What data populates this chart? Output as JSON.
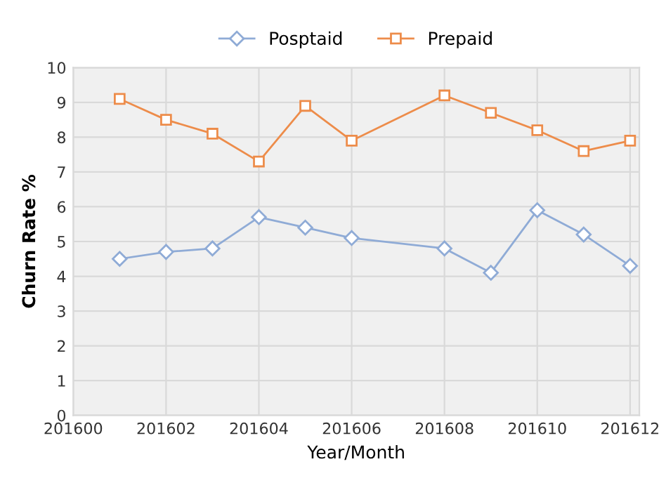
{
  "chart_data": {
    "type": "line",
    "xlabel": "Year/Month",
    "ylabel": "Churn Rate %",
    "x": [
      201601,
      201602,
      201603,
      201604,
      201605,
      201606,
      201608,
      201609,
      201610,
      201611,
      201612
    ],
    "series": [
      {
        "name": "Posptaid",
        "color": "#8fabd6",
        "marker": "diamond",
        "values": [
          4.5,
          4.7,
          4.8,
          5.7,
          5.4,
          5.1,
          4.8,
          4.1,
          5.9,
          5.2,
          4.3
        ]
      },
      {
        "name": "Prepaid",
        "color": "#ed8c4a",
        "marker": "square",
        "values": [
          9.1,
          8.5,
          8.1,
          7.3,
          8.9,
          7.9,
          9.2,
          8.7,
          8.2,
          7.6,
          7.9
        ]
      }
    ],
    "xlim": [
      201600,
      201612.2
    ],
    "xticks": [
      201600,
      201602,
      201604,
      201606,
      201608,
      201610,
      201612
    ],
    "ylim": [
      0,
      10
    ],
    "yticks": [
      0,
      1,
      2,
      3,
      4,
      5,
      6,
      7,
      8,
      9,
      10
    ],
    "grid": true,
    "legend": "top"
  }
}
